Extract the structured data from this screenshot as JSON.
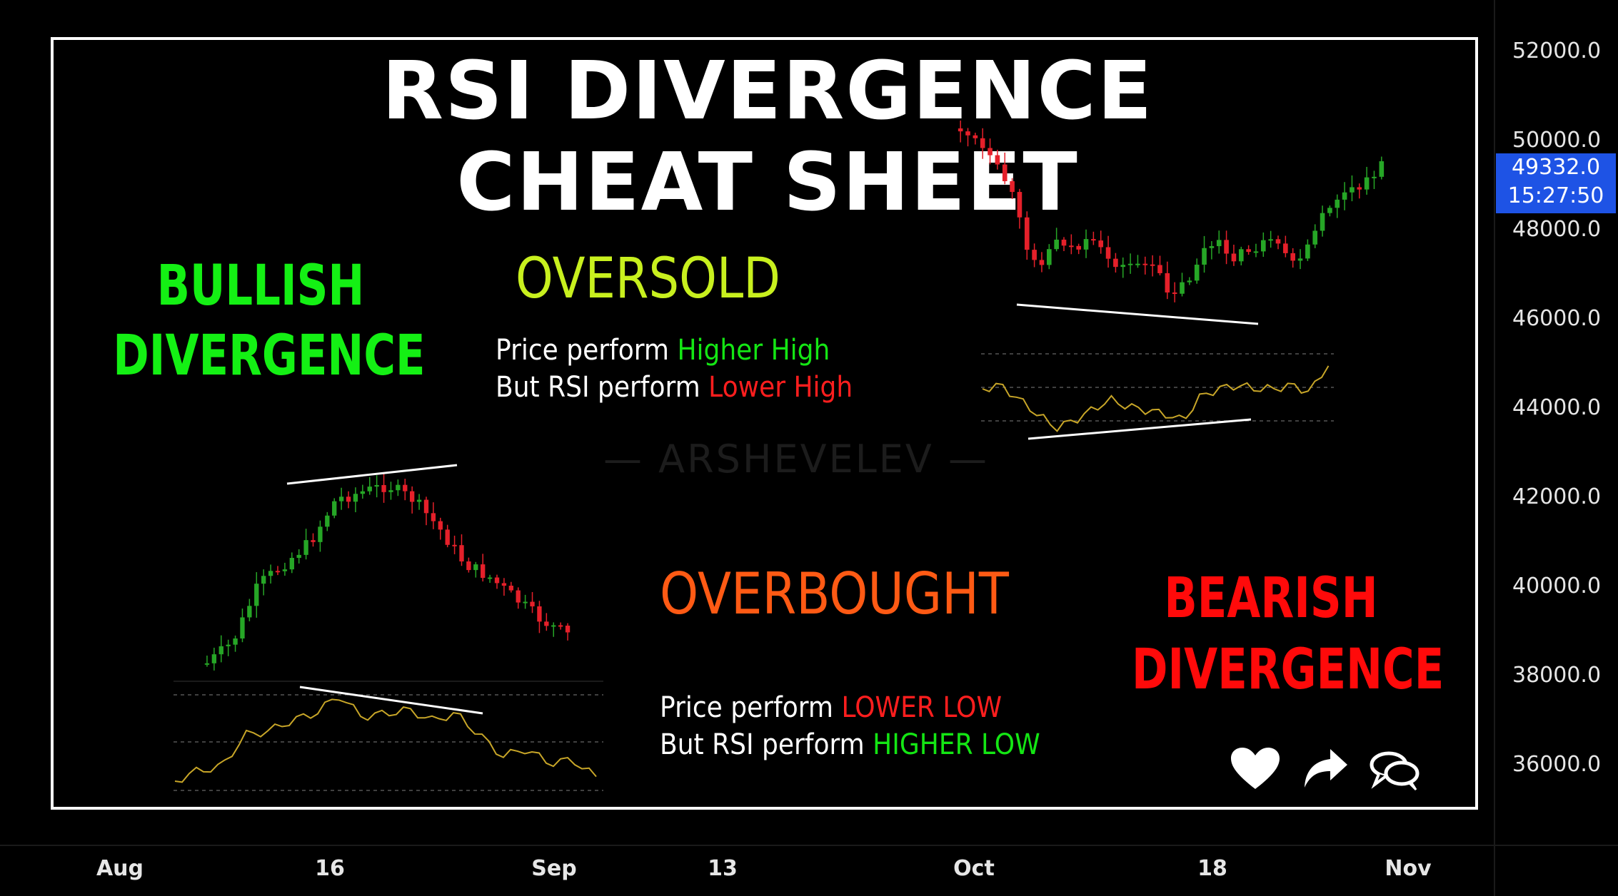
{
  "title_line1": "RSI DIVERGENCE",
  "title_line2": "CHEAT SHEET",
  "bullish": {
    "line1": "BULLISH",
    "line2": "DIVERGENCE",
    "color": "#14f014"
  },
  "bearish": {
    "line1": "BEARISH",
    "line2": "DIVERGENCE",
    "color": "#ff0a0a"
  },
  "oversold": {
    "label": "OVERSOLD",
    "color": "#c8f01e",
    "line1_a": "Price perform ",
    "line1_b": "Higher High",
    "line2_a": "But RSI perform ",
    "line2_b": "Lower High"
  },
  "overbought": {
    "label": "OVERBOUGHT",
    "color": "#ff5a14",
    "line1_a": "Price perform ",
    "line1_b": "LOWER LOW",
    "line2_a": "But RSI perform ",
    "line2_b": "HIGHER LOW"
  },
  "watermark": "— ARSHEVELEV —",
  "price_badge": {
    "price": "49332.0",
    "time": "15:27:50"
  },
  "chart_data": {
    "type": "line",
    "y_ticks": [
      "52000.0",
      "50000.0",
      "48000.0",
      "46000.0",
      "44000.0",
      "42000.0",
      "40000.0",
      "38000.0",
      "36000.0"
    ],
    "x_ticks": [
      "Aug",
      "16",
      "Sep",
      "13",
      "Oct",
      "18",
      "Nov"
    ],
    "ylim": [
      34600,
      53000
    ]
  },
  "colors": {
    "up": "#26a626",
    "down": "#e5202a",
    "rsi": "#c8a628",
    "accent_green": "#14e614",
    "accent_red": "#ff1e1e"
  }
}
